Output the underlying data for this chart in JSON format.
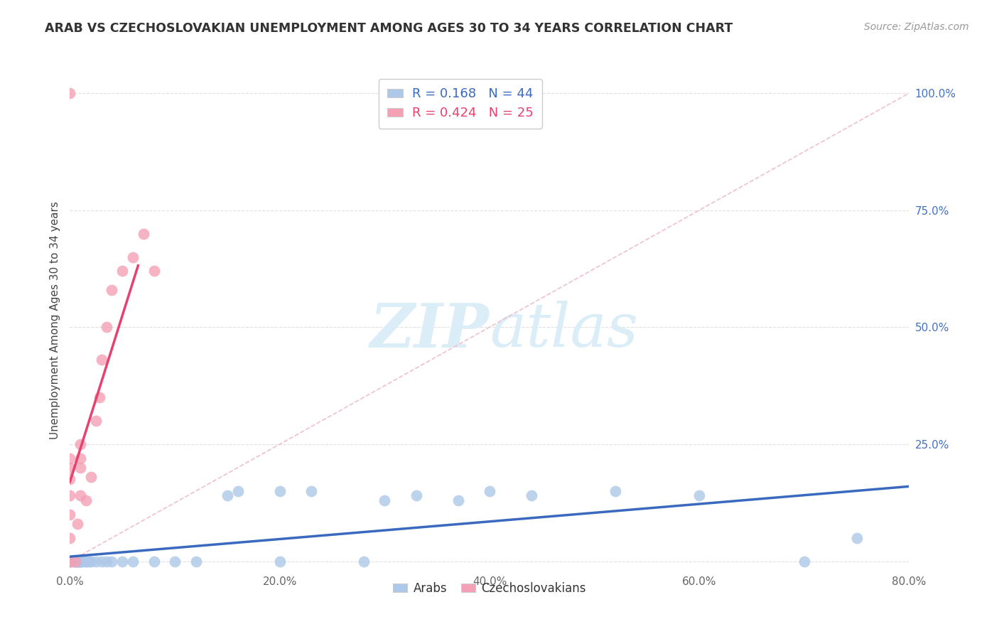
{
  "title": "ARAB VS CZECHOSLOVAKIAN UNEMPLOYMENT AMONG AGES 30 TO 34 YEARS CORRELATION CHART",
  "source": "Source: ZipAtlas.com",
  "ylabel": "Unemployment Among Ages 30 to 34 years",
  "xlim": [
    0.0,
    0.8
  ],
  "ylim": [
    -0.02,
    1.05
  ],
  "xticks": [
    0.0,
    0.1,
    0.2,
    0.3,
    0.4,
    0.5,
    0.6,
    0.7,
    0.8
  ],
  "xtick_labels": [
    "0.0%",
    "",
    "20.0%",
    "",
    "40.0%",
    "",
    "60.0%",
    "",
    "80.0%"
  ],
  "yticks": [
    0.0,
    0.25,
    0.5,
    0.75,
    1.0
  ],
  "ytick_labels": [
    "",
    "25.0%",
    "50.0%",
    "75.0%",
    "100.0%"
  ],
  "arab_color": "#adc8e8",
  "czech_color": "#f4a0b5",
  "arab_line_color": "#3a6abf",
  "czech_line_color": "#e8416e",
  "diag_color": "#f0c0cc",
  "arab_R": 0.168,
  "arab_N": 44,
  "czech_R": 0.424,
  "czech_N": 25,
  "arab_scatter": [
    [
      0.0,
      0.0
    ],
    [
      0.0,
      0.0
    ],
    [
      0.0,
      0.0
    ],
    [
      0.0,
      0.0
    ],
    [
      0.003,
      0.0
    ],
    [
      0.003,
      0.0
    ],
    [
      0.005,
      0.0
    ],
    [
      0.005,
      0.0
    ],
    [
      0.007,
      0.0
    ],
    [
      0.008,
      0.0
    ],
    [
      0.008,
      0.0
    ],
    [
      0.008,
      0.0
    ],
    [
      0.01,
      0.0
    ],
    [
      0.01,
      0.0
    ],
    [
      0.01,
      0.0
    ],
    [
      0.012,
      0.0
    ],
    [
      0.015,
      0.0
    ],
    [
      0.015,
      0.0
    ],
    [
      0.018,
      0.0
    ],
    [
      0.02,
      0.0
    ],
    [
      0.025,
      0.0
    ],
    [
      0.03,
      0.0
    ],
    [
      0.035,
      0.0
    ],
    [
      0.04,
      0.0
    ],
    [
      0.05,
      0.0
    ],
    [
      0.06,
      0.0
    ],
    [
      0.08,
      0.0
    ],
    [
      0.1,
      0.0
    ],
    [
      0.12,
      0.0
    ],
    [
      0.15,
      0.14
    ],
    [
      0.16,
      0.15
    ],
    [
      0.2,
      0.0
    ],
    [
      0.2,
      0.15
    ],
    [
      0.23,
      0.15
    ],
    [
      0.28,
      0.0
    ],
    [
      0.3,
      0.13
    ],
    [
      0.33,
      0.14
    ],
    [
      0.37,
      0.13
    ],
    [
      0.4,
      0.15
    ],
    [
      0.44,
      0.14
    ],
    [
      0.52,
      0.15
    ],
    [
      0.6,
      0.14
    ],
    [
      0.7,
      0.0
    ],
    [
      0.75,
      0.05
    ]
  ],
  "czech_scatter": [
    [
      0.0,
      0.0
    ],
    [
      0.0,
      0.05
    ],
    [
      0.0,
      0.1
    ],
    [
      0.0,
      0.14
    ],
    [
      0.0,
      0.175
    ],
    [
      0.0,
      0.2
    ],
    [
      0.0,
      0.22
    ],
    [
      0.0,
      1.0
    ],
    [
      0.005,
      0.0
    ],
    [
      0.007,
      0.08
    ],
    [
      0.01,
      0.14
    ],
    [
      0.01,
      0.2
    ],
    [
      0.01,
      0.22
    ],
    [
      0.01,
      0.25
    ],
    [
      0.015,
      0.13
    ],
    [
      0.02,
      0.18
    ],
    [
      0.025,
      0.3
    ],
    [
      0.028,
      0.35
    ],
    [
      0.03,
      0.43
    ],
    [
      0.035,
      0.5
    ],
    [
      0.04,
      0.58
    ],
    [
      0.05,
      0.62
    ],
    [
      0.06,
      0.65
    ],
    [
      0.07,
      0.7
    ],
    [
      0.08,
      0.62
    ]
  ],
  "background_color": "#ffffff",
  "grid_color": "#e0e0e0",
  "watermark_zip": "ZIP",
  "watermark_atlas": "atlas",
  "watermark_color": "#dbeef8"
}
